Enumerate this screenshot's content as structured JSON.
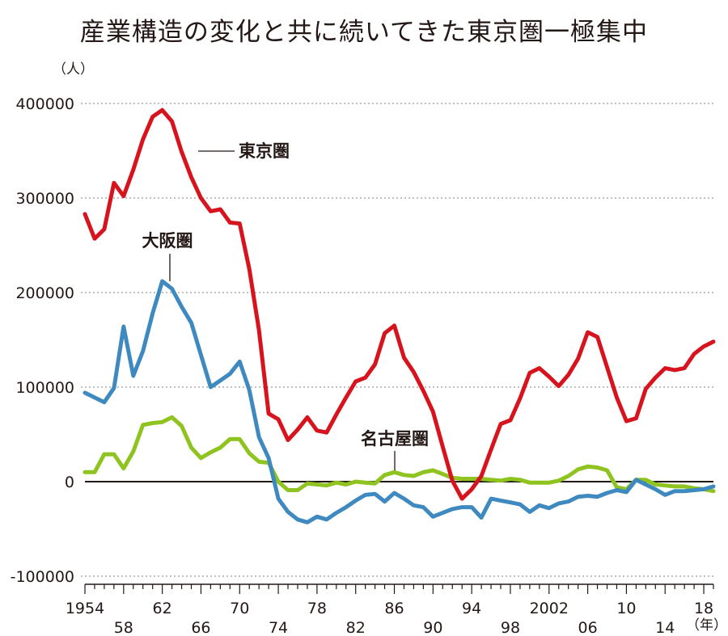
{
  "chart_data": {
    "type": "line",
    "title": "産業構造の変化と共に続いてきた東京圏一極集中",
    "y_unit": "（人）",
    "x_unit": "（年）",
    "ylim": [
      -100000,
      400000
    ],
    "xlim": [
      1954,
      2019
    ],
    "yticks": [
      400000,
      300000,
      200000,
      100000,
      0,
      -100000
    ],
    "ytick_labels": [
      "400000",
      "300000",
      "200000",
      "100000",
      "0",
      "-100000"
    ],
    "xticks": [
      1954,
      1958,
      1962,
      1966,
      1970,
      1974,
      1978,
      1982,
      1986,
      1990,
      1994,
      1998,
      2002,
      2006,
      2010,
      2014,
      2018
    ],
    "xtick_labels": [
      "1954",
      "58",
      "62",
      "66",
      "70",
      "74",
      "78",
      "82",
      "86",
      "90",
      "94",
      "98",
      "2002",
      "06",
      "10",
      "14",
      "18"
    ],
    "grid": true,
    "x": [
      1954,
      1955,
      1956,
      1957,
      1958,
      1959,
      1960,
      1961,
      1962,
      1963,
      1964,
      1965,
      1966,
      1967,
      1968,
      1969,
      1970,
      1971,
      1972,
      1973,
      1974,
      1975,
      1976,
      1977,
      1978,
      1979,
      1980,
      1981,
      1982,
      1983,
      1984,
      1985,
      1986,
      1987,
      1988,
      1989,
      1990,
      1991,
      1992,
      1993,
      1994,
      1995,
      1996,
      1997,
      1998,
      1999,
      2000,
      2001,
      2002,
      2003,
      2004,
      2005,
      2006,
      2007,
      2008,
      2009,
      2010,
      2011,
      2012,
      2013,
      2014,
      2015,
      2016,
      2017,
      2018,
      2019
    ],
    "series": [
      {
        "name": "東京圏",
        "color": "#d7141e",
        "values": [
          283000,
          257000,
          267000,
          316000,
          302000,
          330000,
          362000,
          386000,
          393000,
          381000,
          349000,
          322000,
          300000,
          286000,
          288000,
          274000,
          273000,
          225000,
          160000,
          72000,
          66000,
          44000,
          55000,
          68000,
          54000,
          52000,
          71000,
          89000,
          106000,
          110000,
          124000,
          157000,
          165000,
          131000,
          116000,
          96000,
          74000,
          37000,
          1000,
          -18000,
          -8000,
          6000,
          34000,
          61000,
          65000,
          88000,
          115000,
          120000,
          111000,
          101000,
          113000,
          130000,
          158000,
          153000,
          121000,
          89000,
          64000,
          67000,
          98000,
          110000,
          120000,
          118000,
          120000,
          135000,
          143000,
          148000
        ]
      },
      {
        "name": "大阪圏",
        "color": "#3f89c1",
        "values": [
          94000,
          89000,
          84000,
          99000,
          164000,
          112000,
          138000,
          178000,
          212000,
          204000,
          185000,
          168000,
          134000,
          100000,
          107000,
          114000,
          127000,
          97000,
          47000,
          25000,
          -18000,
          -32000,
          -40000,
          -43000,
          -37000,
          -40000,
          -33000,
          -27000,
          -20000,
          -14000,
          -13000,
          -21000,
          -12000,
          -18000,
          -25000,
          -27000,
          -37000,
          -33000,
          -29000,
          -27000,
          -27000,
          -38000,
          -18000,
          -20000,
          -22000,
          -24000,
          -32000,
          -25000,
          -28000,
          -23000,
          -21000,
          -16000,
          -15000,
          -16000,
          -12000,
          -9000,
          -11000,
          2000,
          -3000,
          -8000,
          -14000,
          -10000,
          -10000,
          -9000,
          -8000,
          -5000
        ]
      },
      {
        "name": "名古屋圏",
        "color": "#8fc31f",
        "values": [
          10000,
          10000,
          29000,
          29000,
          14000,
          32000,
          60000,
          62000,
          63000,
          68000,
          59000,
          36000,
          25000,
          31000,
          36000,
          45000,
          45000,
          30000,
          21000,
          20000,
          0,
          -9000,
          -9000,
          -2000,
          -3000,
          -4000,
          -1000,
          -3000,
          0,
          -1000,
          -2000,
          7000,
          10000,
          7000,
          6000,
          10000,
          12000,
          8000,
          4000,
          3000,
          3000,
          3000,
          2000,
          1000,
          3000,
          2000,
          -1000,
          -1000,
          -1000,
          1000,
          6000,
          13000,
          16000,
          15000,
          12000,
          -6000,
          -8000,
          2000,
          2000,
          -3000,
          -4000,
          -5000,
          -5000,
          -7000,
          -8000,
          -10000
        ]
      }
    ]
  }
}
